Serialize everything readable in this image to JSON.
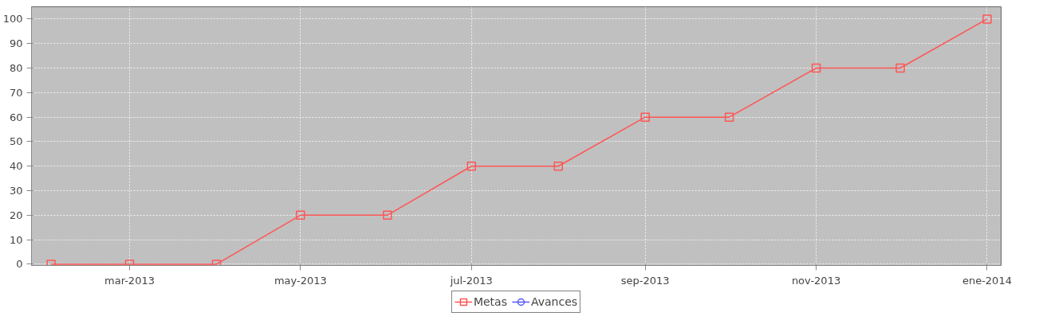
{
  "chart_data": {
    "type": "line",
    "x": [
      "2013-02-01",
      "2013-03-01",
      "2013-04-01",
      "2013-05-01",
      "2013-06-01",
      "2013-07-01",
      "2013-08-01",
      "2013-09-01",
      "2013-10-01",
      "2013-11-01",
      "2013-12-01",
      "2014-01-01"
    ],
    "series": [
      {
        "name": "Metas",
        "color": "#ff5555",
        "marker": "square",
        "values": [
          0,
          0,
          0,
          20,
          20,
          40,
          40,
          60,
          60,
          80,
          80,
          100
        ]
      },
      {
        "name": "Avances",
        "color": "#5555ff",
        "marker": "circle",
        "values": [
          null,
          null,
          null,
          null,
          null,
          null,
          null,
          null,
          null,
          null,
          null,
          null
        ]
      }
    ],
    "xlim": [
      "2013-01-25",
      "2014-01-06"
    ],
    "xticks": [
      {
        "value": "2013-03-01",
        "label": "mar-2013"
      },
      {
        "value": "2013-05-01",
        "label": "may-2013"
      },
      {
        "value": "2013-07-01",
        "label": "jul-2013"
      },
      {
        "value": "2013-09-01",
        "label": "sep-2013"
      },
      {
        "value": "2013-11-01",
        "label": "nov-2013"
      },
      {
        "value": "2014-01-01",
        "label": "ene-2014"
      }
    ],
    "ylim": [
      -0.5,
      105
    ],
    "yticks": [
      0,
      10,
      20,
      30,
      40,
      50,
      60,
      70,
      80,
      90,
      100
    ],
    "grid": true,
    "legend": "bottom",
    "line_style": "solid"
  }
}
